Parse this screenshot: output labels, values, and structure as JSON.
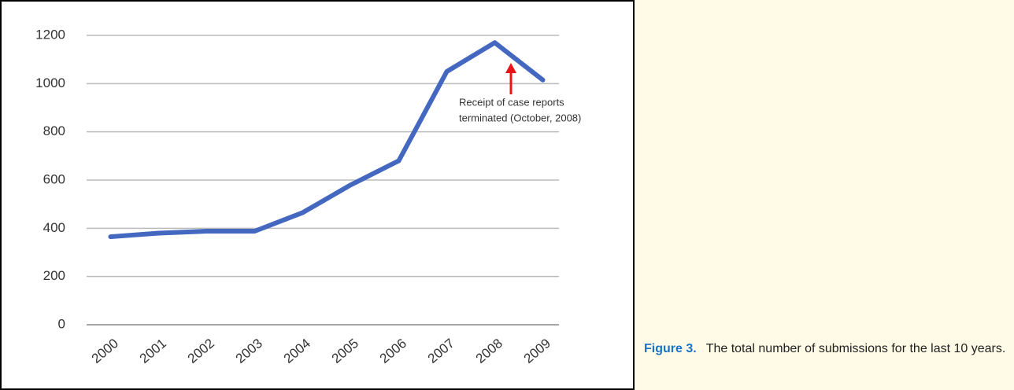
{
  "chart_data": {
    "type": "line",
    "categories": [
      "2000",
      "2001",
      "2002",
      "2003",
      "2004",
      "2005",
      "2006",
      "2007",
      "2008",
      "2009"
    ],
    "series": [
      {
        "color": "#4468c0",
        "values": [
          365,
          380,
          388,
          388,
          465,
          580,
          680,
          1050,
          1170,
          1015
        ]
      }
    ],
    "ylim": [
      0,
      1200
    ],
    "yticks": [
      0,
      200,
      400,
      600,
      800,
      1000,
      1200
    ],
    "grid": true,
    "annotation": [
      "Receipt of case reports",
      "terminated (October, 2008)"
    ],
    "annotation_color": "#e8141a"
  },
  "caption": {
    "label": "Figure 3.",
    "text": "The total number of submissions for the last 10 years."
  }
}
